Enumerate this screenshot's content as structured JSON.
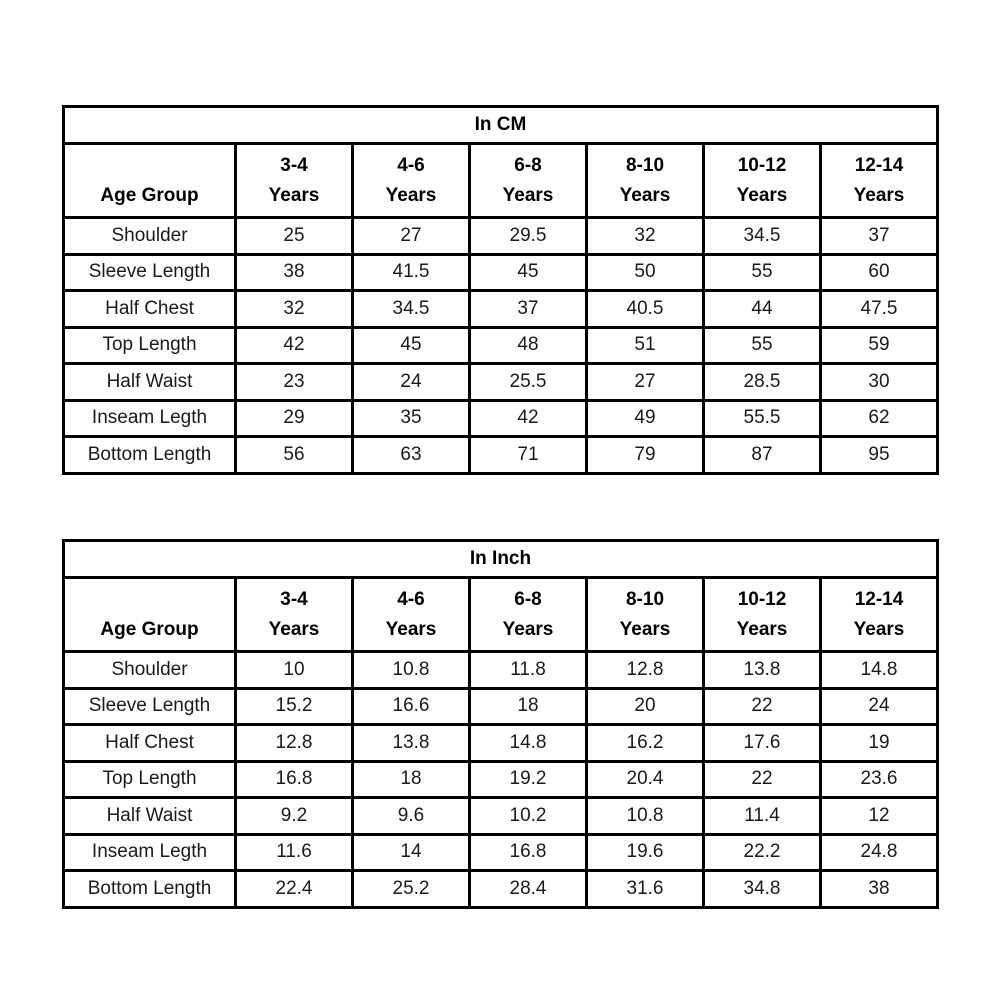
{
  "chart_data": [
    {
      "type": "table",
      "title": "In CM",
      "corner_label": "Age Group",
      "age_ranges": [
        "3-4",
        "4-6",
        "6-8",
        "8-10",
        "10-12",
        "12-14"
      ],
      "age_suffix": "Years",
      "rows": [
        {
          "label": "Shoulder",
          "values": [
            25,
            27,
            29.5,
            32,
            34.5,
            37
          ]
        },
        {
          "label": "Sleeve Length",
          "values": [
            38,
            41.5,
            45,
            50,
            55,
            60
          ]
        },
        {
          "label": "Half Chest",
          "values": [
            32,
            34.5,
            37,
            40.5,
            44,
            47.5
          ]
        },
        {
          "label": "Top Length",
          "values": [
            42,
            45,
            48,
            51,
            55,
            59
          ]
        },
        {
          "label": "Half Waist",
          "values": [
            23,
            24,
            25.5,
            27,
            28.5,
            30
          ]
        },
        {
          "label": "Inseam Legth",
          "values": [
            29,
            35,
            42,
            49,
            55.5,
            62
          ]
        },
        {
          "label": "Bottom Length",
          "values": [
            56,
            63,
            71,
            79,
            87,
            95
          ]
        }
      ]
    },
    {
      "type": "table",
      "title": "In Inch",
      "corner_label": "Age Group",
      "age_ranges": [
        "3-4",
        "4-6",
        "6-8",
        "8-10",
        "10-12",
        "12-14"
      ],
      "age_suffix": "Years",
      "rows": [
        {
          "label": "Shoulder",
          "values": [
            10,
            10.8,
            11.8,
            12.8,
            13.8,
            14.8
          ]
        },
        {
          "label": "Sleeve Length",
          "values": [
            15.2,
            16.6,
            18,
            20,
            22,
            24
          ]
        },
        {
          "label": "Half Chest",
          "values": [
            12.8,
            13.8,
            14.8,
            16.2,
            17.6,
            19
          ]
        },
        {
          "label": "Top Length",
          "values": [
            16.8,
            18,
            19.2,
            20.4,
            22,
            23.6
          ]
        },
        {
          "label": "Half Waist",
          "values": [
            9.2,
            9.6,
            10.2,
            10.8,
            11.4,
            12
          ]
        },
        {
          "label": "Inseam Legth",
          "values": [
            11.6,
            14,
            16.8,
            19.6,
            22.2,
            24.8
          ]
        },
        {
          "label": "Bottom Length",
          "values": [
            22.4,
            25.2,
            28.4,
            31.6,
            34.8,
            38
          ]
        }
      ]
    }
  ]
}
